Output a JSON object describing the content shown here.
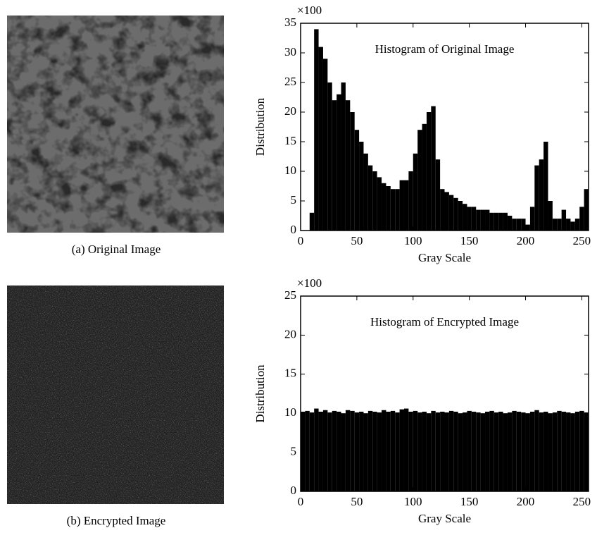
{
  "captions": [
    "(a) Original Image",
    "(b) Encrypted Image"
  ],
  "chart_data": [
    {
      "type": "histogram",
      "title": "Histogram of Original Image",
      "x_label": "Gray Scale",
      "y_label": "Distribution",
      "y_multiplier": "×100",
      "bins": [
        0,
        4,
        8,
        12,
        16,
        20,
        24,
        28,
        32,
        36,
        40,
        44,
        48,
        52,
        56,
        60,
        64,
        68,
        72,
        76,
        80,
        84,
        88,
        92,
        96,
        100,
        104,
        108,
        112,
        116,
        120,
        124,
        128,
        132,
        136,
        140,
        144,
        148,
        152,
        156,
        160,
        164,
        168,
        172,
        176,
        180,
        184,
        188,
        192,
        196,
        200,
        204,
        208,
        212,
        216,
        220,
        224,
        228,
        232,
        236,
        240,
        244,
        248,
        252,
        256
      ],
      "counts": [
        0,
        0,
        3,
        34,
        31,
        29,
        25,
        22,
        23,
        25,
        22,
        20,
        17,
        15,
        13,
        11,
        10,
        9,
        8,
        7.5,
        7,
        7,
        8.5,
        8.5,
        10,
        13,
        17,
        18,
        20,
        21,
        12,
        7,
        6.5,
        6,
        5.5,
        5,
        4.5,
        4,
        4,
        3.5,
        3.5,
        3.5,
        3,
        3,
        3,
        3,
        2.5,
        2,
        2,
        2,
        1,
        4,
        11,
        12,
        15,
        5,
        2,
        2,
        3.5,
        2,
        1.5,
        2,
        4,
        7
      ],
      "color": "#000000",
      "xlim": [
        0,
        256
      ],
      "xticks": [
        0,
        50,
        100,
        150,
        200,
        250
      ],
      "ylim": [
        0,
        35
      ],
      "yticks": [
        0,
        5,
        10,
        15,
        20,
        25,
        30,
        35
      ]
    },
    {
      "type": "histogram",
      "title": "Histogram of Encrypted Image",
      "x_label": "Gray Scale",
      "y_label": "Distribution",
      "y_multiplier": "×100",
      "bins": [
        0,
        4,
        8,
        12,
        16,
        20,
        24,
        28,
        32,
        36,
        40,
        44,
        48,
        52,
        56,
        60,
        64,
        68,
        72,
        76,
        80,
        84,
        88,
        92,
        96,
        100,
        104,
        108,
        112,
        116,
        120,
        124,
        128,
        132,
        136,
        140,
        144,
        148,
        152,
        156,
        160,
        164,
        168,
        172,
        176,
        180,
        184,
        188,
        192,
        196,
        200,
        204,
        208,
        212,
        216,
        220,
        224,
        228,
        232,
        236,
        240,
        244,
        248,
        252,
        256
      ],
      "counts": [
        10.2,
        10.3,
        10.1,
        10.6,
        10.2,
        10.4,
        10.1,
        10.3,
        10.2,
        10.0,
        10.4,
        10.3,
        10.1,
        10.2,
        10.0,
        10.3,
        10.2,
        10.1,
        10.4,
        10.2,
        10.3,
        10.1,
        10.5,
        10.6,
        10.2,
        10.3,
        10.1,
        10.2,
        10.0,
        10.3,
        10.1,
        10.2,
        10.1,
        10.3,
        10.2,
        10.0,
        10.1,
        10.3,
        10.2,
        10.1,
        10.0,
        10.2,
        10.3,
        10.1,
        10.2,
        10.0,
        10.1,
        10.3,
        10.2,
        10.1,
        10.0,
        10.2,
        10.4,
        10.1,
        10.2,
        10.0,
        10.1,
        10.3,
        10.2,
        10.1,
        10.0,
        10.2,
        10.3,
        10.1
      ],
      "color": "#000000",
      "xlim": [
        0,
        256
      ],
      "xticks": [
        0,
        50,
        100,
        150,
        200,
        250
      ],
      "ylim": [
        0,
        25
      ],
      "yticks": [
        0,
        5,
        10,
        15,
        20,
        25
      ]
    }
  ]
}
